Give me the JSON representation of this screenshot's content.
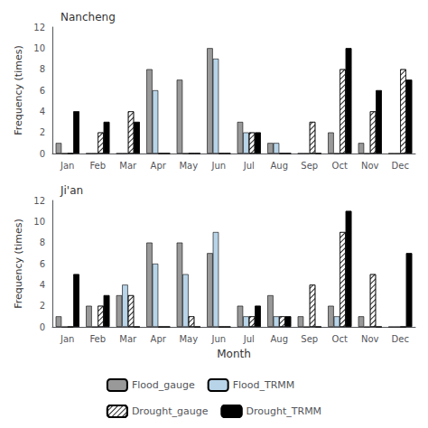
{
  "chart_data": [
    {
      "type": "bar",
      "title": "Nancheng",
      "categories": [
        "Jan",
        "Feb",
        "Mar",
        "Apr",
        "May",
        "Jun",
        "Jul",
        "Aug",
        "Sep",
        "Oct",
        "Nov",
        "Dec"
      ],
      "series": [
        {
          "name": "Flood_gauge",
          "color": "#999999",
          "values": [
            1,
            0,
            0,
            8,
            7,
            10,
            3,
            1,
            0,
            2,
            1,
            0
          ]
        },
        {
          "name": "Flood_TRMM",
          "color": "#b8d4e8",
          "values": [
            0,
            0,
            0,
            6,
            0,
            9,
            2,
            1,
            0,
            0,
            0,
            0
          ]
        },
        {
          "name": "Drought_gauge",
          "color": "#ffffff",
          "values": [
            0,
            2,
            4,
            0,
            0,
            0,
            2,
            0,
            3,
            8,
            4,
            8
          ]
        },
        {
          "name": "Drought_TRMM",
          "color": "#000000",
          "values": [
            4,
            3,
            3,
            0,
            0,
            0,
            2,
            0,
            0,
            10,
            6,
            7
          ]
        }
      ],
      "ylabel": "Frequency (times)",
      "ylim": [
        0,
        12
      ],
      "yticks": [
        0,
        2,
        4,
        6,
        8,
        10,
        12
      ],
      "grid": false
    },
    {
      "type": "bar",
      "title": "Ji'an",
      "categories": [
        "Jan",
        "Feb",
        "Mar",
        "Apr",
        "May",
        "Jun",
        "Jul",
        "Aug",
        "Sep",
        "Oct",
        "Nov",
        "Dec"
      ],
      "series": [
        {
          "name": "Flood_gauge",
          "color": "#999999",
          "values": [
            1,
            2,
            3,
            8,
            8,
            7,
            2,
            3,
            1,
            2,
            1,
            0
          ]
        },
        {
          "name": "Flood_TRMM",
          "color": "#b8d4e8",
          "values": [
            0,
            0,
            4,
            6,
            5,
            9,
            1,
            1,
            0,
            1,
            0,
            0
          ]
        },
        {
          "name": "Drought_gauge",
          "color": "#ffffff",
          "values": [
            0,
            2,
            3,
            0,
            1,
            0,
            1,
            1,
            4,
            9,
            5,
            0
          ]
        },
        {
          "name": "Drought_TRMM",
          "color": "#000000",
          "values": [
            5,
            3,
            0,
            0,
            0,
            0,
            2,
            1,
            0,
            11,
            0,
            7
          ]
        }
      ],
      "xlabel": "Month",
      "ylabel": "Frequency (times)",
      "ylim": [
        0,
        12
      ],
      "yticks": [
        0,
        2,
        4,
        6,
        8,
        10,
        12
      ],
      "grid": false,
      "legend": "bottom"
    }
  ]
}
